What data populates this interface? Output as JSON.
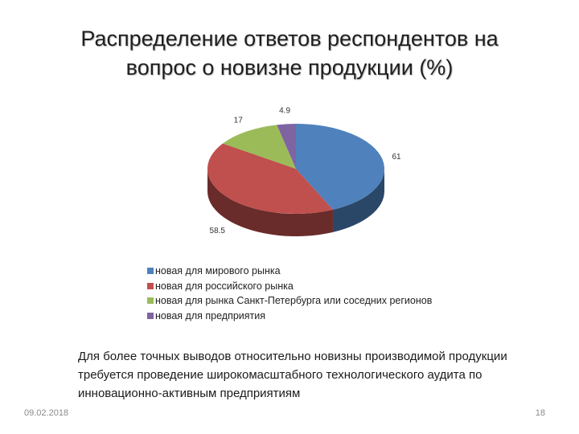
{
  "title_lines": [
    "Распределение ответов респондентов на",
    "вопрос о новизне продукции (%)"
  ],
  "chart_data": {
    "type": "pie",
    "labels": [
      "новая для мирового рынка",
      "новая для российского рынка",
      "новая для рынка Санкт-Петербурга или соседних регионов",
      "новая для предприятия"
    ],
    "values": [
      61,
      58.5,
      17,
      4.9
    ],
    "data_labels": [
      "61",
      "58.5",
      "17",
      "4.9"
    ],
    "colors": [
      "#4f81bd",
      "#c0504d",
      "#9bbb59",
      "#8064a2"
    ],
    "legend_position": "bottom"
  },
  "note": "Для более точных выводов относительно новизны производимой продукции требуется проведение широкомасштабного технологического аудита по инновационно-активным предприятиям",
  "footer": {
    "date": "09.02.2018",
    "page": "18"
  }
}
